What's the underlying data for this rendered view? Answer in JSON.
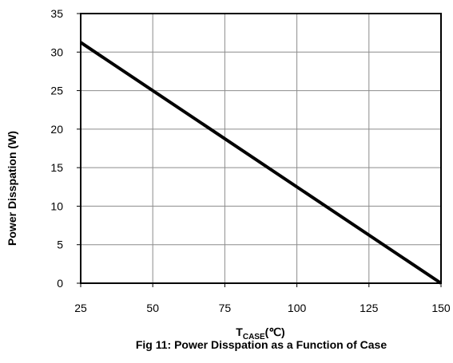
{
  "chart_data": {
    "type": "line",
    "title": "Fig 11: Power Disspation as a Function of Case",
    "xlabel": {
      "main": "T",
      "sub": "CASE",
      "unit": "(℃)"
    },
    "ylabel": "Power Disspation (W)",
    "xlim": [
      25,
      150
    ],
    "ylim": [
      0,
      35
    ],
    "xticks": [
      25,
      50,
      75,
      100,
      125,
      150
    ],
    "yticks": [
      0,
      5,
      10,
      15,
      20,
      25,
      30,
      35
    ],
    "grid": true,
    "series": [
      {
        "x": [
          25,
          150
        ],
        "y": [
          31.25,
          0
        ],
        "color": "#000000"
      }
    ]
  }
}
